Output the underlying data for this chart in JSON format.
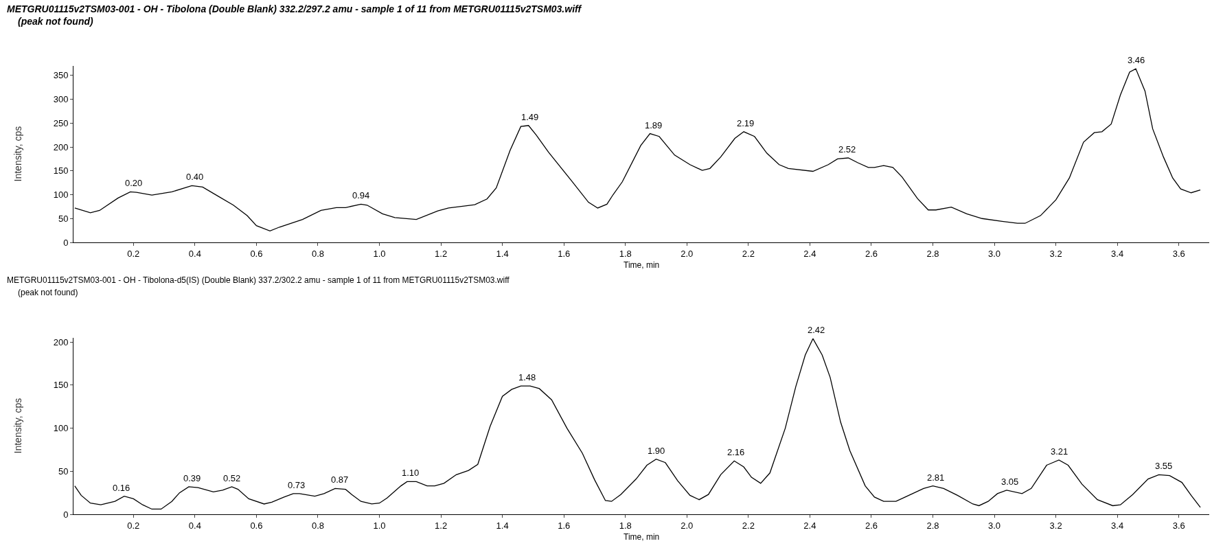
{
  "chart_data": [
    {
      "type": "line",
      "title": "METGRU01115v2TSM03-001 - OH - Tibolona (Double Blank) 332.2/297.2 amu - sample 1 of 11 from METGRU01115v2TSM03.wiff",
      "subtitle": "(peak not found)",
      "xlabel": "Time, min",
      "ylabel": "Intensity, cps",
      "series": [
        {
          "color": "#000000",
          "x": [
            0.009,
            0.06,
            0.09,
            0.15,
            0.19,
            0.21,
            0.26,
            0.325,
            0.39,
            0.425,
            0.475,
            0.525,
            0.57,
            0.6,
            0.644,
            0.675,
            0.75,
            0.81,
            0.86,
            0.89,
            0.94,
            0.96,
            1.01,
            1.05,
            1.12,
            1.19,
            1.225,
            1.275,
            1.31,
            1.35,
            1.38,
            1.425,
            1.46,
            1.485,
            1.51,
            1.55,
            1.625,
            1.68,
            1.71,
            1.74,
            1.76,
            1.79,
            1.85,
            1.88,
            1.91,
            1.96,
            2.01,
            2.05,
            2.075,
            2.11,
            2.156,
            2.185,
            2.22,
            2.26,
            2.3,
            2.33,
            2.41,
            2.46,
            2.49,
            2.525,
            2.556,
            2.59,
            2.61,
            2.64,
            2.67,
            2.7,
            2.75,
            2.785,
            2.81,
            2.86,
            2.91,
            2.96,
            3.025,
            3.075,
            3.1,
            3.15,
            3.2,
            3.244,
            3.29,
            3.325,
            3.35,
            3.38,
            3.41,
            3.44,
            3.46,
            3.49,
            3.515,
            3.55,
            3.58,
            3.606,
            3.64,
            3.67
          ],
          "values": [
            72,
            62,
            67,
            93,
            106,
            105,
            99,
            106,
            119,
            116,
            97,
            78,
            56,
            35,
            24,
            32,
            48,
            67,
            73,
            73,
            80,
            78,
            60,
            52,
            48,
            66,
            72,
            76,
            79,
            91,
            114,
            193,
            243,
            245,
            225,
            189,
            129,
            84,
            72,
            80,
            100,
            127,
            203,
            228,
            222,
            183,
            163,
            151,
            155,
            179,
            218,
            232,
            222,
            187,
            163,
            155,
            149,
            163,
            175,
            177,
            167,
            157,
            157,
            161,
            157,
            137,
            92,
            68,
            68,
            74,
            60,
            50,
            44,
            40,
            40,
            56,
            89,
            135,
            210,
            230,
            232,
            248,
            309,
            357,
            364,
            317,
            238,
            179,
            135,
            112,
            104,
            110
          ]
        }
      ],
      "annotations": [
        {
          "text": "0.20",
          "x": 0.2,
          "y": 106
        },
        {
          "text": "0.40",
          "x": 0.4,
          "y": 119
        },
        {
          "text": "0.94",
          "x": 0.94,
          "y": 80
        },
        {
          "text": "1.49",
          "x": 1.49,
          "y": 245
        },
        {
          "text": "1.89",
          "x": 1.89,
          "y": 228
        },
        {
          "text": "2.19",
          "x": 2.19,
          "y": 232
        },
        {
          "text": "2.52",
          "x": 2.52,
          "y": 177
        },
        {
          "text": "3.46",
          "x": 3.46,
          "y": 364
        }
      ],
      "xlim": [
        0.005,
        3.7
      ],
      "ylim": [
        0,
        370
      ],
      "xticks": [
        0.2,
        0.4,
        0.6,
        0.8,
        {
          "value": 1,
          "label": "1.0"
        },
        1.2,
        1.4,
        1.6,
        1.8,
        {
          "value": 2,
          "label": "2.0"
        },
        2.2,
        2.4,
        2.6,
        2.8,
        {
          "value": 3,
          "label": "3.0"
        },
        3.2,
        3.4,
        3.6
      ],
      "yticks": [
        0,
        50,
        100,
        150,
        200,
        250,
        300,
        350
      ],
      "marker": "none",
      "line_style": "solid"
    },
    {
      "type": "line",
      "title": "METGRU01115v2TSM03-001 - OH - Tibolona-d5(IS) (Double Blank) 337.2/302.2 amu - sample 1 of 11 from METGRU01115v2TSM03.wiff",
      "subtitle": "(peak not found)",
      "xlabel": "Time, min",
      "ylabel": "Intensity, cps",
      "series": [
        {
          "color": "#000000",
          "x": [
            0.009,
            0.03,
            0.06,
            0.094,
            0.14,
            0.17,
            0.2,
            0.23,
            0.26,
            0.29,
            0.325,
            0.35,
            0.38,
            0.41,
            0.46,
            0.49,
            0.52,
            0.54,
            0.575,
            0.625,
            0.65,
            0.69,
            0.72,
            0.74,
            0.79,
            0.82,
            0.856,
            0.89,
            0.91,
            0.94,
            0.975,
            1.0,
            1.025,
            1.07,
            1.09,
            1.12,
            1.155,
            1.18,
            1.21,
            1.25,
            1.29,
            1.32,
            1.36,
            1.4,
            1.43,
            1.46,
            1.49,
            1.52,
            1.56,
            1.61,
            1.66,
            1.7,
            1.735,
            1.755,
            1.785,
            1.835,
            1.87,
            1.9,
            1.93,
            1.97,
            2.01,
            2.04,
            2.07,
            2.11,
            2.154,
            2.185,
            2.21,
            2.24,
            2.27,
            2.32,
            2.354,
            2.385,
            2.41,
            2.44,
            2.466,
            2.5,
            2.53,
            2.58,
            2.61,
            2.64,
            2.68,
            2.71,
            2.77,
            2.8,
            2.835,
            2.88,
            2.93,
            2.95,
            2.98,
            3.01,
            3.04,
            3.09,
            3.12,
            3.17,
            3.21,
            3.24,
            3.285,
            3.335,
            3.385,
            3.41,
            3.45,
            3.5,
            3.535,
            3.57,
            3.61,
            3.64,
            3.67
          ],
          "values": [
            33,
            22,
            13,
            11,
            15,
            21,
            18,
            11,
            6,
            6,
            15,
            25,
            32,
            31,
            26,
            28,
            32,
            29,
            18,
            12,
            14,
            20,
            24,
            24,
            21,
            24,
            30,
            29,
            23,
            15,
            12,
            13,
            19,
            33,
            38,
            38,
            33,
            33,
            36,
            46,
            51,
            58,
            102,
            137,
            145,
            149,
            149,
            146,
            133,
            100,
            71,
            40,
            16,
            15,
            23,
            41,
            57,
            64,
            60,
            39,
            22,
            17,
            23,
            46,
            62,
            55,
            43,
            36,
            48,
            100,
            148,
            185,
            204,
            185,
            159,
            107,
            74,
            33,
            20,
            15,
            15,
            20,
            30,
            33,
            30,
            22,
            12,
            10,
            15,
            24,
            28,
            24,
            30,
            57,
            63,
            57,
            35,
            17,
            10,
            11,
            23,
            41,
            46,
            45,
            37,
            22,
            8
          ]
        }
      ],
      "annotations": [
        {
          "text": "0.16",
          "x": 0.16,
          "y": 21
        },
        {
          "text": "0.39",
          "x": 0.39,
          "y": 32
        },
        {
          "text": "0.52",
          "x": 0.52,
          "y": 32
        },
        {
          "text": "0.73",
          "x": 0.73,
          "y": 24
        },
        {
          "text": "0.87",
          "x": 0.87,
          "y": 30
        },
        {
          "text": "1.10",
          "x": 1.1,
          "y": 38
        },
        {
          "text": "1.48",
          "x": 1.48,
          "y": 149
        },
        {
          "text": "1.90",
          "x": 1.9,
          "y": 64
        },
        {
          "text": "2.16",
          "x": 2.16,
          "y": 62
        },
        {
          "text": "2.42",
          "x": 2.42,
          "y": 204
        },
        {
          "text": "2.81",
          "x": 2.81,
          "y": 33
        },
        {
          "text": "3.05",
          "x": 3.05,
          "y": 28
        },
        {
          "text": "3.21",
          "x": 3.21,
          "y": 63
        },
        {
          "text": "3.55",
          "x": 3.55,
          "y": 46
        }
      ],
      "xlim": [
        0.005,
        3.7
      ],
      "ylim": [
        0,
        205
      ],
      "xticks": [
        0.2,
        0.4,
        0.6,
        0.8,
        {
          "value": 1,
          "label": "1.0"
        },
        1.2,
        1.4,
        1.6,
        1.8,
        {
          "value": 2,
          "label": "2.0"
        },
        2.2,
        2.4,
        2.6,
        2.8,
        {
          "value": 3,
          "label": "3.0"
        },
        3.2,
        3.4,
        3.6
      ],
      "yticks": [
        0,
        50,
        100,
        150,
        200
      ],
      "marker": "none",
      "line_style": "solid"
    }
  ]
}
